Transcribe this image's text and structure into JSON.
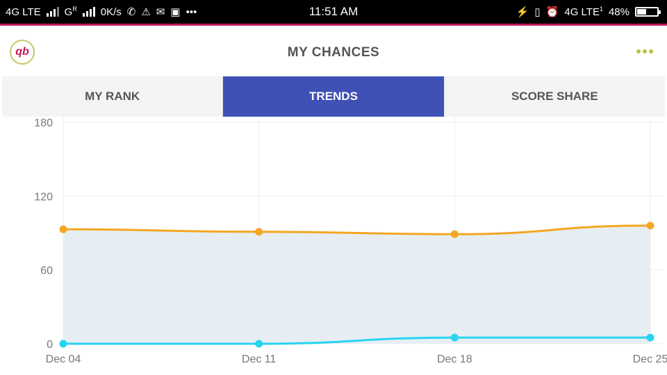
{
  "statusbar": {
    "network1": "4G LTE",
    "network2": "G",
    "network2_sup": "R",
    "speed": "0K/s",
    "time": "11:51 AM",
    "network3": "4G LTE",
    "network3_sup": "1",
    "battery": "48%",
    "battery_level": 0.48
  },
  "appbar": {
    "title": "MY CHANCES",
    "logo_text": "qb"
  },
  "tabs": [
    {
      "label": "MY RANK",
      "active": false
    },
    {
      "label": "TRENDS",
      "active": true
    },
    {
      "label": "SCORE SHARE",
      "active": false
    }
  ],
  "colors": {
    "accent": "#3f51b5",
    "orange_series": "#f5a623",
    "cyan_series": "#26d4f0",
    "area_fill": "#e6eef3",
    "status_pink": "#c2185b"
  },
  "chart_data": {
    "type": "line",
    "categories": [
      "Dec 04",
      "Dec 11",
      "Dec 18",
      "Dec 25"
    ],
    "y_ticks": [
      "180",
      "120",
      "60",
      "0"
    ],
    "ylim": [
      0,
      180
    ],
    "grid": true,
    "series": [
      {
        "values": [
          93,
          91,
          89,
          96
        ],
        "color": "#f5a623",
        "filled": true
      },
      {
        "values": [
          0,
          0,
          5,
          5
        ],
        "color": "#26d4f0",
        "filled": false
      }
    ]
  }
}
